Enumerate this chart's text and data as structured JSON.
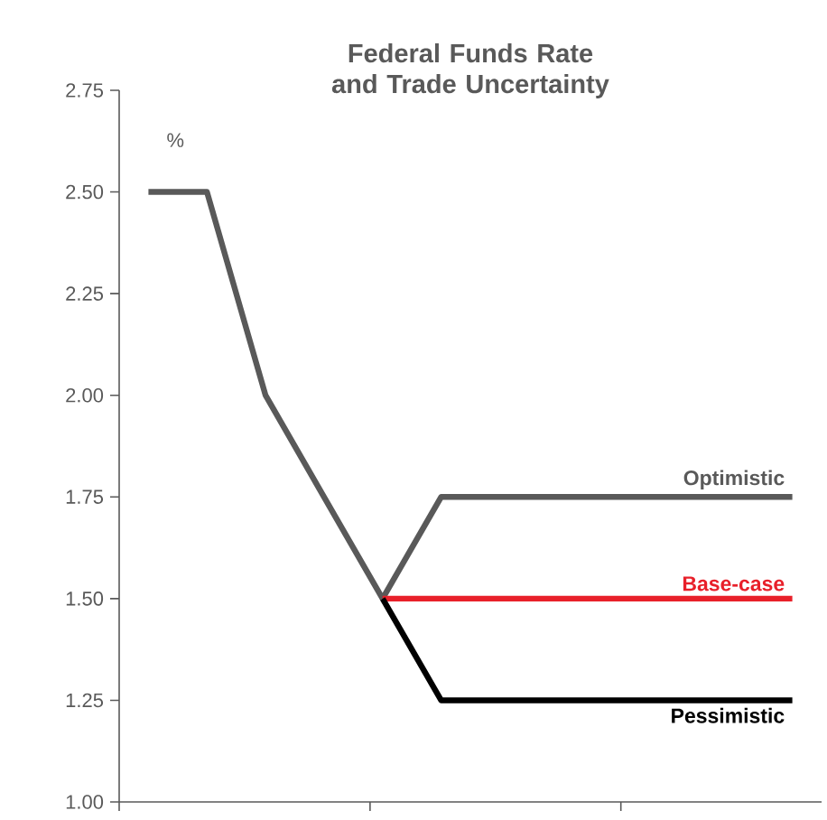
{
  "chart_data": {
    "type": "line",
    "title": "Federal Funds Rate and Trade Uncertainty",
    "ylabel": "%",
    "categories": [
      null,
      null,
      null,
      null,
      null,
      null,
      null,
      null,
      null,
      null,
      null,
      null
    ],
    "ylim": [
      1,
      2.75
    ],
    "yticks": [
      {
        "value": 1,
        "label": "1.00"
      },
      {
        "value": 1.25,
        "label": "1.25"
      },
      {
        "value": 1.5,
        "label": "1.50"
      },
      {
        "value": 1.75,
        "label": "1.75"
      },
      {
        "value": 2,
        "label": "2.00"
      },
      {
        "value": 2.25,
        "label": "2.25"
      },
      {
        "value": 2.5,
        "label": "2.50"
      },
      {
        "value": 2.75,
        "label": "2.75"
      }
    ],
    "tick_labels": "y",
    "grid": false,
    "marker": "none",
    "line_style": "solid",
    "series": [
      {
        "color": "#595959",
        "values": [
          2.5,
          2.5,
          2.0,
          1.75,
          1.5,
          null,
          null,
          null,
          null,
          null,
          null,
          null
        ]
      },
      {
        "name": "Optimistic",
        "color": "#595959",
        "values": [
          null,
          null,
          null,
          null,
          1.5,
          1.75,
          1.75,
          1.75,
          1.75,
          1.75,
          1.75,
          1.75
        ]
      },
      {
        "name": "Base-case",
        "color": "#e8202a",
        "values": [
          null,
          null,
          null,
          null,
          1.5,
          1.5,
          1.5,
          1.5,
          1.5,
          1.5,
          1.5,
          1.5
        ]
      },
      {
        "name": "Pessimistic",
        "color": "#000000",
        "values": [
          null,
          null,
          null,
          null,
          1.5,
          1.25,
          1.25,
          1.25,
          1.25,
          1.25,
          1.25,
          1.25
        ]
      }
    ]
  }
}
